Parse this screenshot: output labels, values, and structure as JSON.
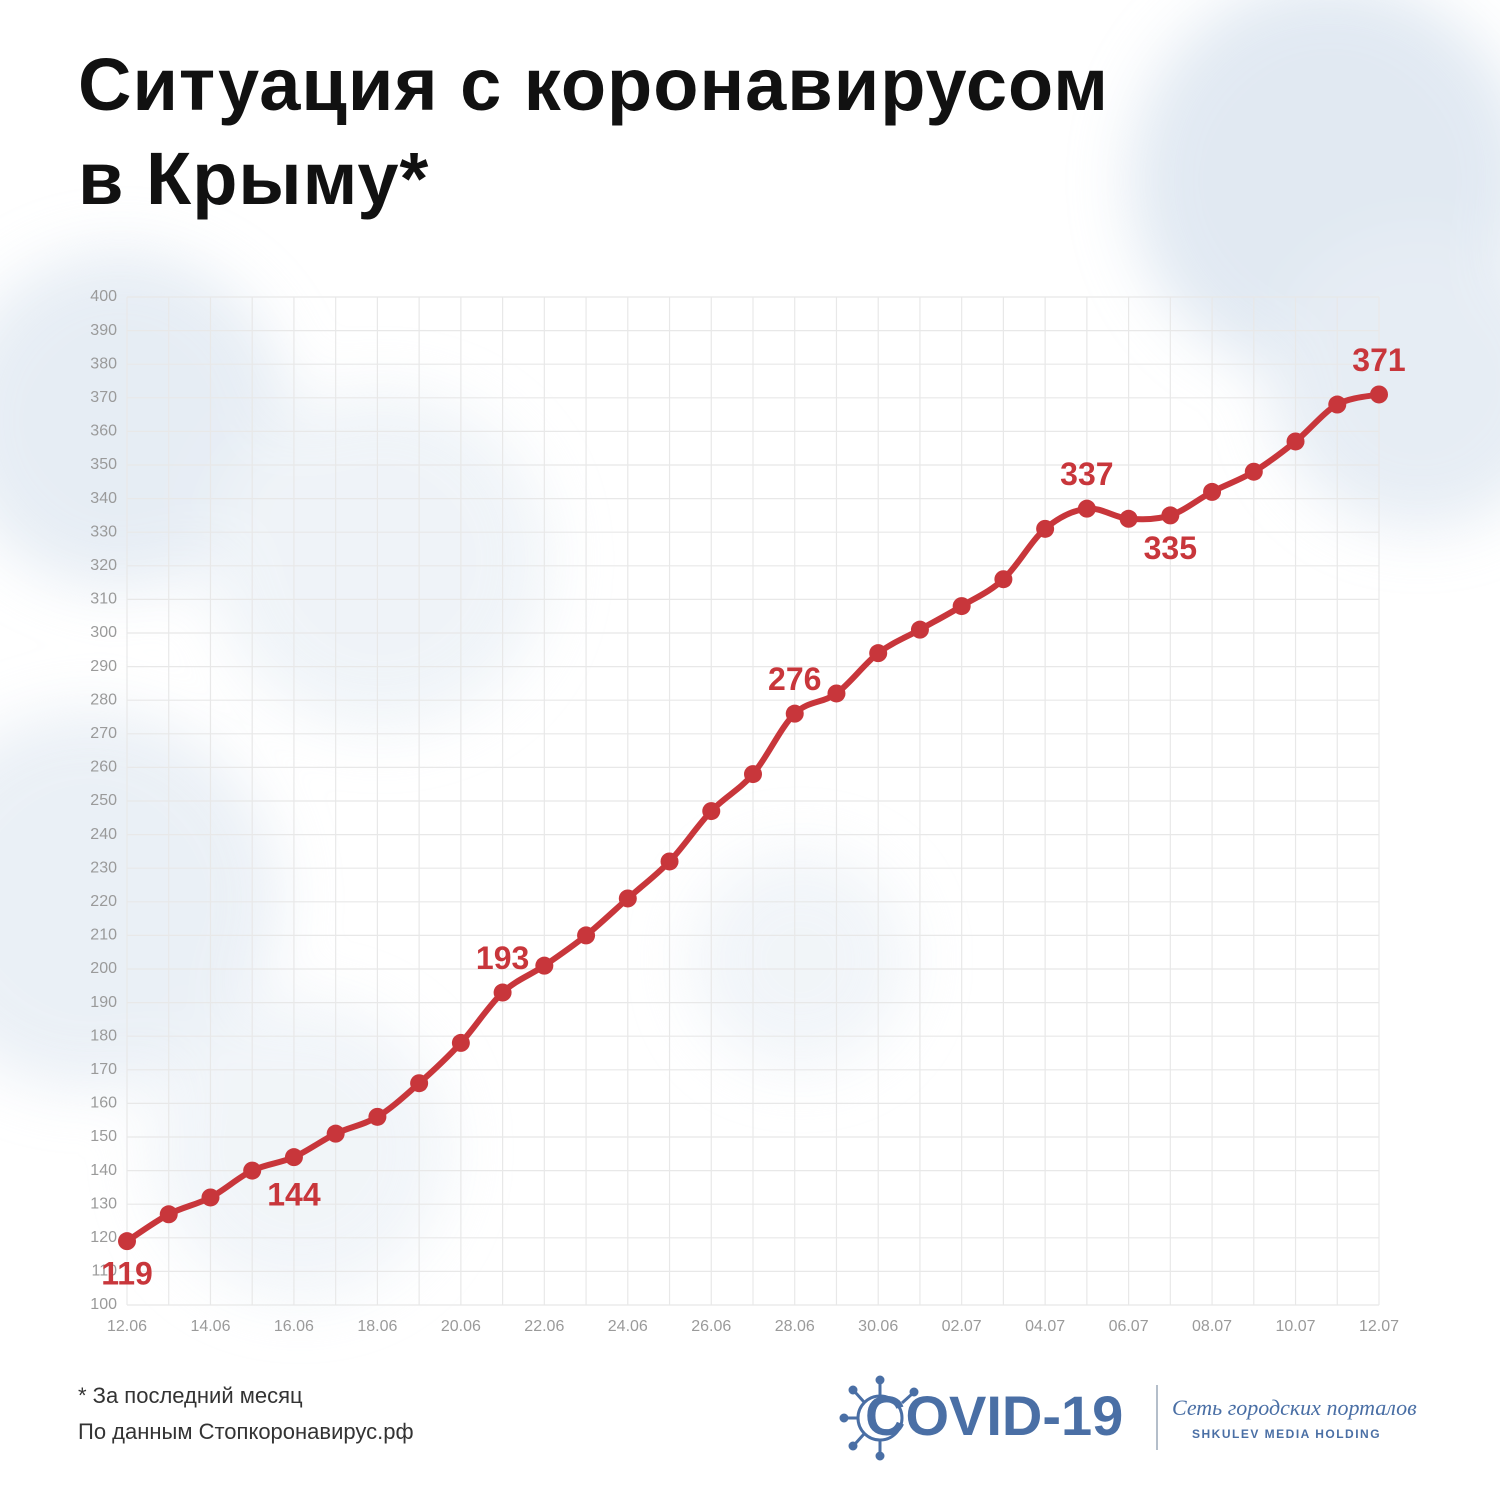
{
  "chart_data": {
    "type": "line",
    "title": "Ситуация с коронавирусом\nв Крыму*",
    "categories": [
      "12.06",
      null,
      "14.06",
      null,
      "16.06",
      null,
      "18.06",
      null,
      "20.06",
      null,
      "22.06",
      null,
      "24.06",
      null,
      "26.06",
      null,
      "28.06",
      null,
      "30.06",
      null,
      "02.07",
      null,
      "04.07",
      null,
      "06.07",
      null,
      "08.07",
      null,
      "10.07",
      null,
      "12.07"
    ],
    "series": [
      {
        "color": "#c8363b",
        "values": [
          119,
          127,
          132,
          140,
          144,
          151,
          156,
          166,
          178,
          193,
          201,
          210,
          221,
          232,
          247,
          258,
          276,
          282,
          294,
          301,
          308,
          316,
          331,
          337,
          334,
          335,
          342,
          348,
          357,
          368,
          371
        ]
      }
    ],
    "labeled_points": [
      0,
      4,
      9,
      16,
      23,
      25,
      30
    ],
    "ylim": [
      100,
      400
    ],
    "yticks": [
      100,
      110,
      120,
      130,
      140,
      150,
      160,
      170,
      180,
      190,
      200,
      210,
      220,
      230,
      240,
      250,
      260,
      270,
      280,
      290,
      300,
      310,
      320,
      330,
      340,
      350,
      360,
      370,
      380,
      390,
      400
    ],
    "grid": true,
    "notes": [
      "* За последний месяц",
      "По данным Стопкоронавирус.рф"
    ],
    "logo": {
      "name": "COVID-19",
      "network": "Сеть городских порталов",
      "holding": "SHKULEV MEDIA HOLDING"
    }
  }
}
